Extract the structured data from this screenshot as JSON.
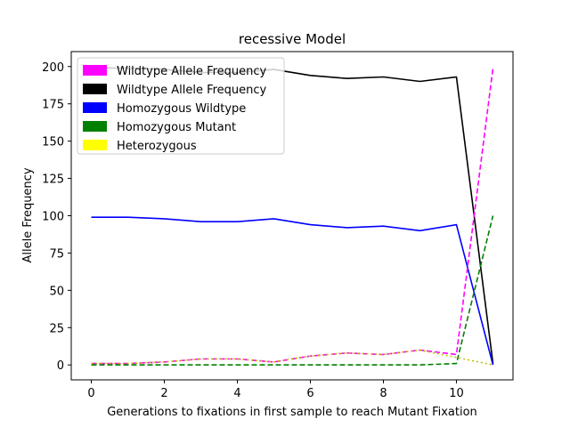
{
  "chart_data": {
    "type": "line",
    "title": "recessive Model",
    "xlabel": "Generations to fixations in first sample to reach Mutant Fixation",
    "ylabel": "Allele Frequency",
    "xlim": [
      -0.55,
      11.55
    ],
    "ylim": [
      -10,
      210
    ],
    "xticks": [
      0,
      2,
      4,
      6,
      8,
      10
    ],
    "yticks": [
      0,
      25,
      50,
      75,
      100,
      125,
      150,
      175,
      200
    ],
    "grid": false,
    "legend_position": "top-left",
    "x": [
      0,
      1,
      2,
      3,
      4,
      5,
      6,
      7,
      8,
      9,
      10,
      11
    ],
    "series": [
      {
        "name": "Wildtype Allele Frequency",
        "color": "#ff00ff",
        "legend_color": "#ff00ff",
        "dash": "dashed",
        "values": [
          1,
          1,
          2,
          4,
          4,
          2,
          6,
          8,
          7,
          10,
          7,
          199
        ]
      },
      {
        "name": "Wildtype Allele Frequency",
        "color": "#000000",
        "legend_color": "#000000",
        "dash": "solid",
        "values": [
          199,
          199,
          198,
          196,
          196,
          198,
          194,
          192,
          193,
          190,
          193,
          1
        ]
      },
      {
        "name": "Homozygous Wildtype",
        "color": "#0000ff",
        "legend_color": "#0000ff",
        "dash": "solid",
        "values": [
          99,
          99,
          98,
          96,
          96,
          98,
          94,
          92,
          93,
          90,
          94,
          0
        ]
      },
      {
        "name": "Homozygous Mutant",
        "color": "#008000",
        "legend_color": "#008000",
        "dash": "dashed",
        "values": [
          0,
          0,
          0,
          0,
          0,
          0,
          0,
          0,
          0,
          0,
          1,
          100
        ]
      },
      {
        "name": "Heterozygous",
        "color": "#bfbf00",
        "legend_color": "#ffff00",
        "dash": "dotted",
        "values": [
          1,
          1,
          2,
          4,
          4,
          2,
          6,
          8,
          7,
          10,
          5,
          0
        ]
      }
    ]
  }
}
